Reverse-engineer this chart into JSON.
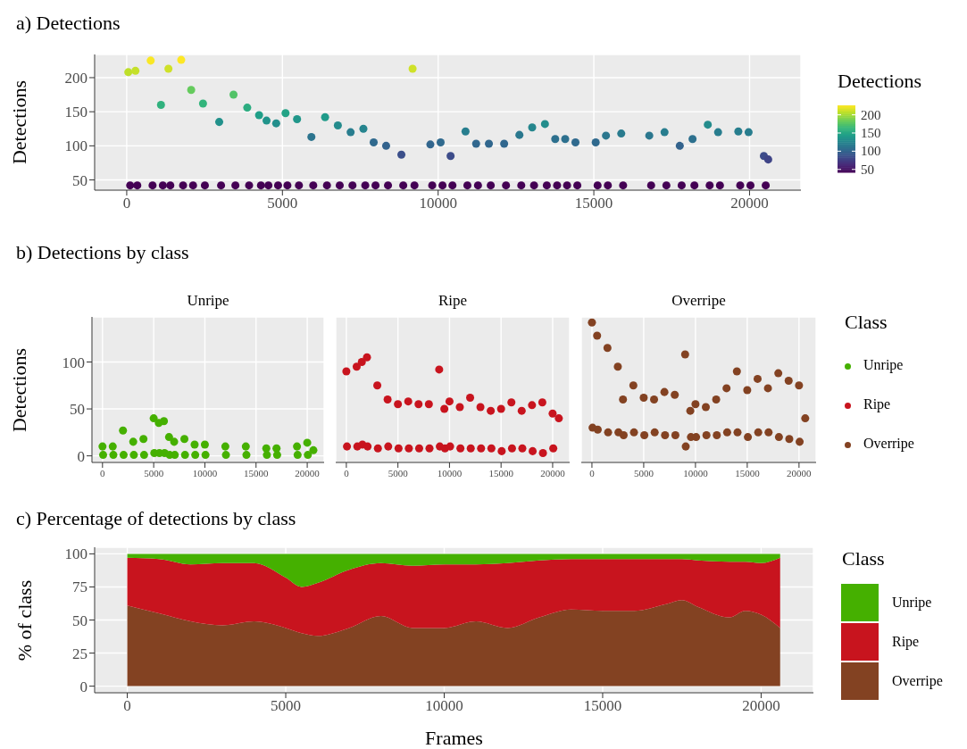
{
  "chart_data": [
    {
      "type": "scatter",
      "title": "a) Detections",
      "ylabel": "Detections",
      "legend_title": "Detections",
      "marker": "circle",
      "grid": true,
      "xlim": [
        -1030,
        21650
      ],
      "ylim": [
        35,
        234
      ],
      "xticks": [
        0,
        5000,
        10000,
        15000,
        20000
      ],
      "yticks": [
        50,
        100,
        150,
        200
      ],
      "clim": [
        42,
        226
      ],
      "cticks": [
        50,
        100,
        150,
        200
      ],
      "series": [
        {
          "x": [
            50,
            110,
            280,
            340,
            770,
            830,
            1100,
            1160,
            1340,
            1400,
            1750,
            1810,
            2070,
            2130,
            2450,
            2510,
            2970,
            3030,
            3430,
            3490,
            3870,
            3930,
            4250,
            4310,
            4490,
            4550,
            4800,
            4860,
            5100,
            5160,
            5470,
            5530,
            5930,
            5990,
            6370,
            6430,
            6780,
            6840,
            7190,
            7250,
            7600,
            7660,
            7930,
            7990,
            8330,
            8390,
            8820,
            8880,
            9180,
            9240,
            9750,
            9810,
            10080,
            10140,
            10400,
            10460,
            10880,
            10940,
            11220,
            11280,
            11630,
            11690,
            12120,
            12180,
            12610,
            12670,
            13020,
            13080,
            13430,
            13490,
            13760,
            13820,
            14080,
            14140,
            14410,
            14470,
            15060,
            15120,
            15390,
            15450,
            15880,
            15940,
            16780,
            16840,
            17270,
            17330,
            17760,
            17820,
            18170,
            18230,
            18660,
            18720,
            18990,
            19050,
            19640,
            19700,
            19970,
            20030,
            20460,
            20520,
            20600
          ],
          "values": [
            208,
            42,
            210,
            42,
            225,
            42,
            160,
            42,
            213,
            42,
            226,
            42,
            182,
            42,
            162,
            42,
            135,
            42,
            175,
            42,
            156,
            42,
            145,
            42,
            137,
            42,
            133,
            42,
            148,
            42,
            139,
            42,
            113,
            42,
            142,
            42,
            130,
            42,
            120,
            42,
            125,
            42,
            105,
            42,
            100,
            42,
            87,
            42,
            213,
            42,
            102,
            42,
            105,
            42,
            85,
            42,
            121,
            42,
            103,
            42,
            103,
            42,
            103,
            42,
            116,
            42,
            127,
            42,
            132,
            42,
            110,
            42,
            110,
            42,
            105,
            42,
            105,
            42,
            115,
            42,
            118,
            42,
            115,
            42,
            120,
            42,
            100,
            42,
            110,
            42,
            131,
            42,
            120,
            42,
            121,
            42,
            120,
            42,
            85,
            42,
            80
          ],
          "cvalues": [
            208,
            42,
            210,
            42,
            225,
            42,
            160,
            42,
            213,
            42,
            226,
            42,
            182,
            42,
            162,
            42,
            135,
            42,
            175,
            42,
            156,
            42,
            145,
            42,
            137,
            42,
            133,
            42,
            148,
            42,
            139,
            42,
            113,
            42,
            142,
            42,
            130,
            42,
            120,
            42,
            125,
            42,
            105,
            42,
            100,
            42,
            87,
            42,
            213,
            42,
            102,
            42,
            105,
            42,
            85,
            42,
            121,
            42,
            103,
            42,
            103,
            42,
            103,
            42,
            116,
            42,
            127,
            42,
            132,
            42,
            110,
            42,
            110,
            42,
            105,
            42,
            105,
            42,
            115,
            42,
            118,
            42,
            115,
            42,
            120,
            42,
            100,
            42,
            110,
            42,
            131,
            42,
            120,
            42,
            121,
            42,
            120,
            42,
            85,
            42,
            80
          ]
        }
      ]
    },
    {
      "type": "scatter",
      "title": "b) Detections by class",
      "subtitle": "Unripe",
      "ylabel": "Detections",
      "marker": "circle",
      "grid": true,
      "legend": "right",
      "xlim": [
        -1030,
        21650
      ],
      "ylim": [
        -7,
        148
      ],
      "xticks": [
        0,
        5000,
        10000,
        15000,
        20000
      ],
      "yticks": [
        0,
        50,
        100
      ],
      "series": [
        {
          "name": "Unripe",
          "color": "#45b000",
          "x": [
            0,
            60,
            1000,
            1060,
            2000,
            2060,
            3000,
            3060,
            4000,
            4060,
            5000,
            5060,
            5500,
            5560,
            6000,
            6060,
            6500,
            6560,
            7000,
            7060,
            8000,
            8060,
            9000,
            9060,
            10000,
            10060,
            12000,
            12060,
            14000,
            14060,
            16000,
            16060,
            17000,
            17060,
            19000,
            19060,
            20000,
            20060,
            20600
          ],
          "values": [
            10,
            1,
            10,
            1,
            27,
            1,
            15,
            1,
            18,
            1,
            40,
            3,
            35,
            3,
            37,
            3,
            20,
            1,
            15,
            1,
            18,
            1,
            12,
            1,
            12,
            1,
            10,
            1,
            10,
            1,
            8,
            1,
            8,
            1,
            10,
            1,
            14,
            1,
            6
          ]
        }
      ]
    },
    {
      "type": "scatter",
      "subtitle": "Ripe",
      "marker": "circle",
      "grid": true,
      "legend": "right",
      "tick_labels": "x",
      "xlim": [
        -1030,
        21650
      ],
      "ylim": [
        -7,
        148
      ],
      "xticks": [
        0,
        5000,
        10000,
        15000,
        20000
      ],
      "yticks": [
        0,
        50,
        100
      ],
      "series": [
        {
          "name": "Ripe",
          "color": "#c8141e",
          "x": [
            0,
            60,
            1000,
            1060,
            1500,
            1560,
            2000,
            2060,
            3000,
            3060,
            4000,
            4060,
            5000,
            5060,
            6000,
            6060,
            7000,
            7060,
            8000,
            8060,
            9000,
            9060,
            9500,
            9560,
            10000,
            10060,
            11000,
            11060,
            12000,
            12060,
            13000,
            13060,
            14000,
            14060,
            15000,
            15060,
            16000,
            16060,
            17000,
            17060,
            18000,
            18060,
            19000,
            19060,
            20000,
            20060,
            20600
          ],
          "values": [
            90,
            10,
            95,
            10,
            100,
            12,
            105,
            10,
            75,
            8,
            60,
            10,
            55,
            8,
            58,
            8,
            55,
            8,
            55,
            8,
            92,
            10,
            50,
            8,
            58,
            10,
            52,
            8,
            62,
            8,
            52,
            8,
            48,
            8,
            50,
            5,
            57,
            8,
            48,
            8,
            54,
            5,
            57,
            3,
            45,
            8,
            40
          ]
        }
      ]
    },
    {
      "type": "scatter",
      "subtitle": "Overripe",
      "legend_title": "Class",
      "marker": "circle",
      "grid": true,
      "legend": "right",
      "tick_labels": "x",
      "xlim": [
        -1030,
        21650
      ],
      "ylim": [
        -7,
        148
      ],
      "xticks": [
        0,
        5000,
        10000,
        15000,
        20000
      ],
      "yticks": [
        0,
        50,
        100
      ],
      "series": [
        {
          "name": "Overripe",
          "color": "#834222",
          "x": [
            0,
            60,
            500,
            560,
            1500,
            1560,
            2500,
            2560,
            3000,
            3060,
            4000,
            4060,
            5000,
            5060,
            6000,
            6060,
            7000,
            7060,
            8000,
            8060,
            9000,
            9060,
            9500,
            9560,
            10000,
            10060,
            11000,
            11060,
            12000,
            12060,
            13000,
            13060,
            14000,
            14060,
            15000,
            15060,
            16000,
            16060,
            17000,
            17060,
            18000,
            18060,
            19000,
            19060,
            20000,
            20060,
            20600
          ],
          "values": [
            142,
            30,
            128,
            28,
            115,
            25,
            95,
            25,
            60,
            22,
            75,
            25,
            62,
            22,
            60,
            25,
            68,
            22,
            65,
            22,
            108,
            10,
            48,
            20,
            55,
            20,
            52,
            22,
            60,
            22,
            72,
            25,
            90,
            25,
            70,
            20,
            82,
            25,
            72,
            25,
            88,
            20,
            80,
            18,
            75,
            15,
            40
          ]
        }
      ]
    },
    {
      "type": "area",
      "title": "c) Percentage of detections by class",
      "xlabel": "Frames",
      "ylabel": "% of class",
      "legend_title": "Class",
      "legend": "right",
      "stacked": true,
      "grid": true,
      "xlim": [
        -1030,
        21650
      ],
      "ylim": [
        -5,
        105
      ],
      "xticks": [
        0,
        5000,
        10000,
        15000,
        20000
      ],
      "yticks": [
        0,
        25,
        50,
        75,
        100
      ],
      "x": [
        0,
        1000,
        2000,
        3000,
        4000,
        5000,
        5500,
        6000,
        7000,
        8000,
        9000,
        10000,
        11000,
        12000,
        13000,
        14000,
        15000,
        16000,
        17000,
        17500,
        18000,
        19000,
        19500,
        20000,
        20600
      ],
      "series": [
        {
          "name": "Overripe",
          "color": "#834222",
          "values": [
            61,
            55,
            49,
            46,
            49,
            44,
            40,
            38,
            44,
            53,
            44,
            44,
            49,
            44,
            52,
            58,
            57,
            57,
            62,
            65,
            60,
            52,
            57,
            54,
            44
          ]
        },
        {
          "name": "Ripe",
          "color": "#c8141e",
          "values": [
            36,
            41,
            43,
            47,
            44,
            38,
            35,
            40,
            44,
            40,
            47,
            48,
            43,
            49,
            43,
            38,
            39,
            39,
            34,
            31,
            35,
            42,
            37,
            39,
            53
          ]
        },
        {
          "name": "Unripe",
          "color": "#45b000",
          "values": [
            3,
            4,
            8,
            7,
            7,
            18,
            25,
            22,
            12,
            7,
            9,
            8,
            8,
            7,
            5,
            4,
            4,
            4,
            4,
            4,
            5,
            6,
            6,
            7,
            3
          ]
        }
      ]
    }
  ]
}
